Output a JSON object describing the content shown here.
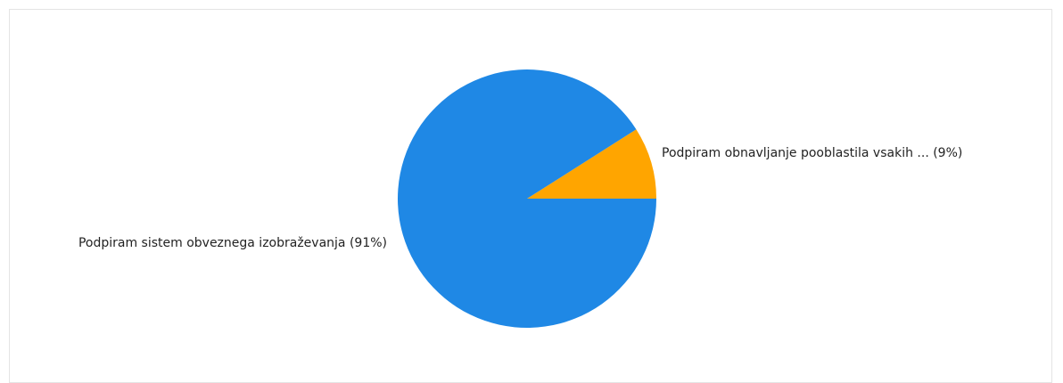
{
  "chart_data": {
    "type": "pie",
    "title": "",
    "start_angle_deg": 0,
    "direction": "counterclockwise",
    "slices": [
      {
        "label": "Podpiram obnavljanje pooblastila vsakih ... (9%)",
        "value": 9,
        "color": "#FFA500"
      },
      {
        "label": "Podpiram sistem obveznega izobraževanja (91%)",
        "value": 91,
        "color": "#1F88E5"
      }
    ]
  }
}
